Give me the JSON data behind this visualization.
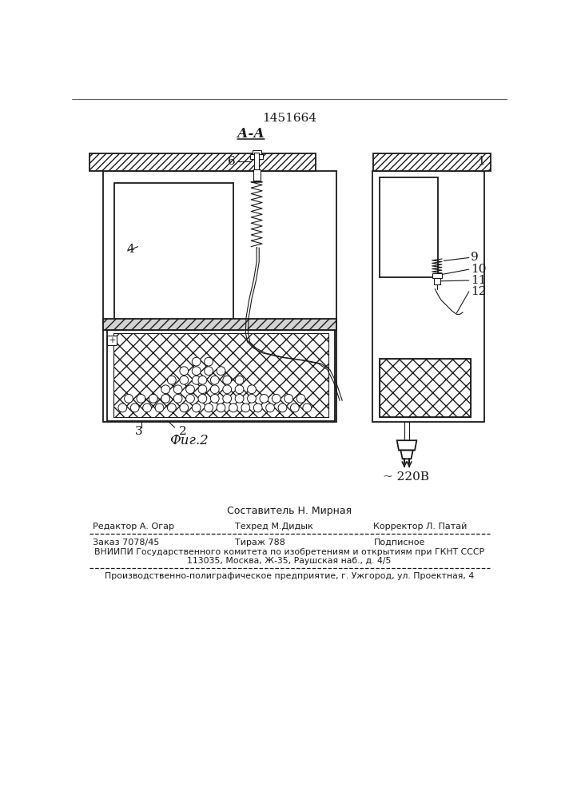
{
  "title": "1451664",
  "section_label": "А-А",
  "fig_label": "Фиг.2",
  "voltage_label": "~ 220В",
  "composer": "Составитель Н. Мирная",
  "editor": "Редактор А. Огар",
  "techred": "Техред М.Дидык",
  "corrector": "Корректор Л. Патай",
  "order": "Заказ 7078/45",
  "tirazh": "Тираж 788",
  "podpisnoe": "Подписное",
  "vnipi_line1": "ВНИИПИ Государственного комитета по изобретениям и открытиям при ГКНТ СССР",
  "vnipi_line2": "113035, Москва, Ж-35, Раушская наб., д. 4/5",
  "production": "Производственно-полиграфическое предприятие, г. Ужгород, ул. Проектная, 4",
  "bg_color": "#ffffff",
  "line_color": "#1a1a1a"
}
